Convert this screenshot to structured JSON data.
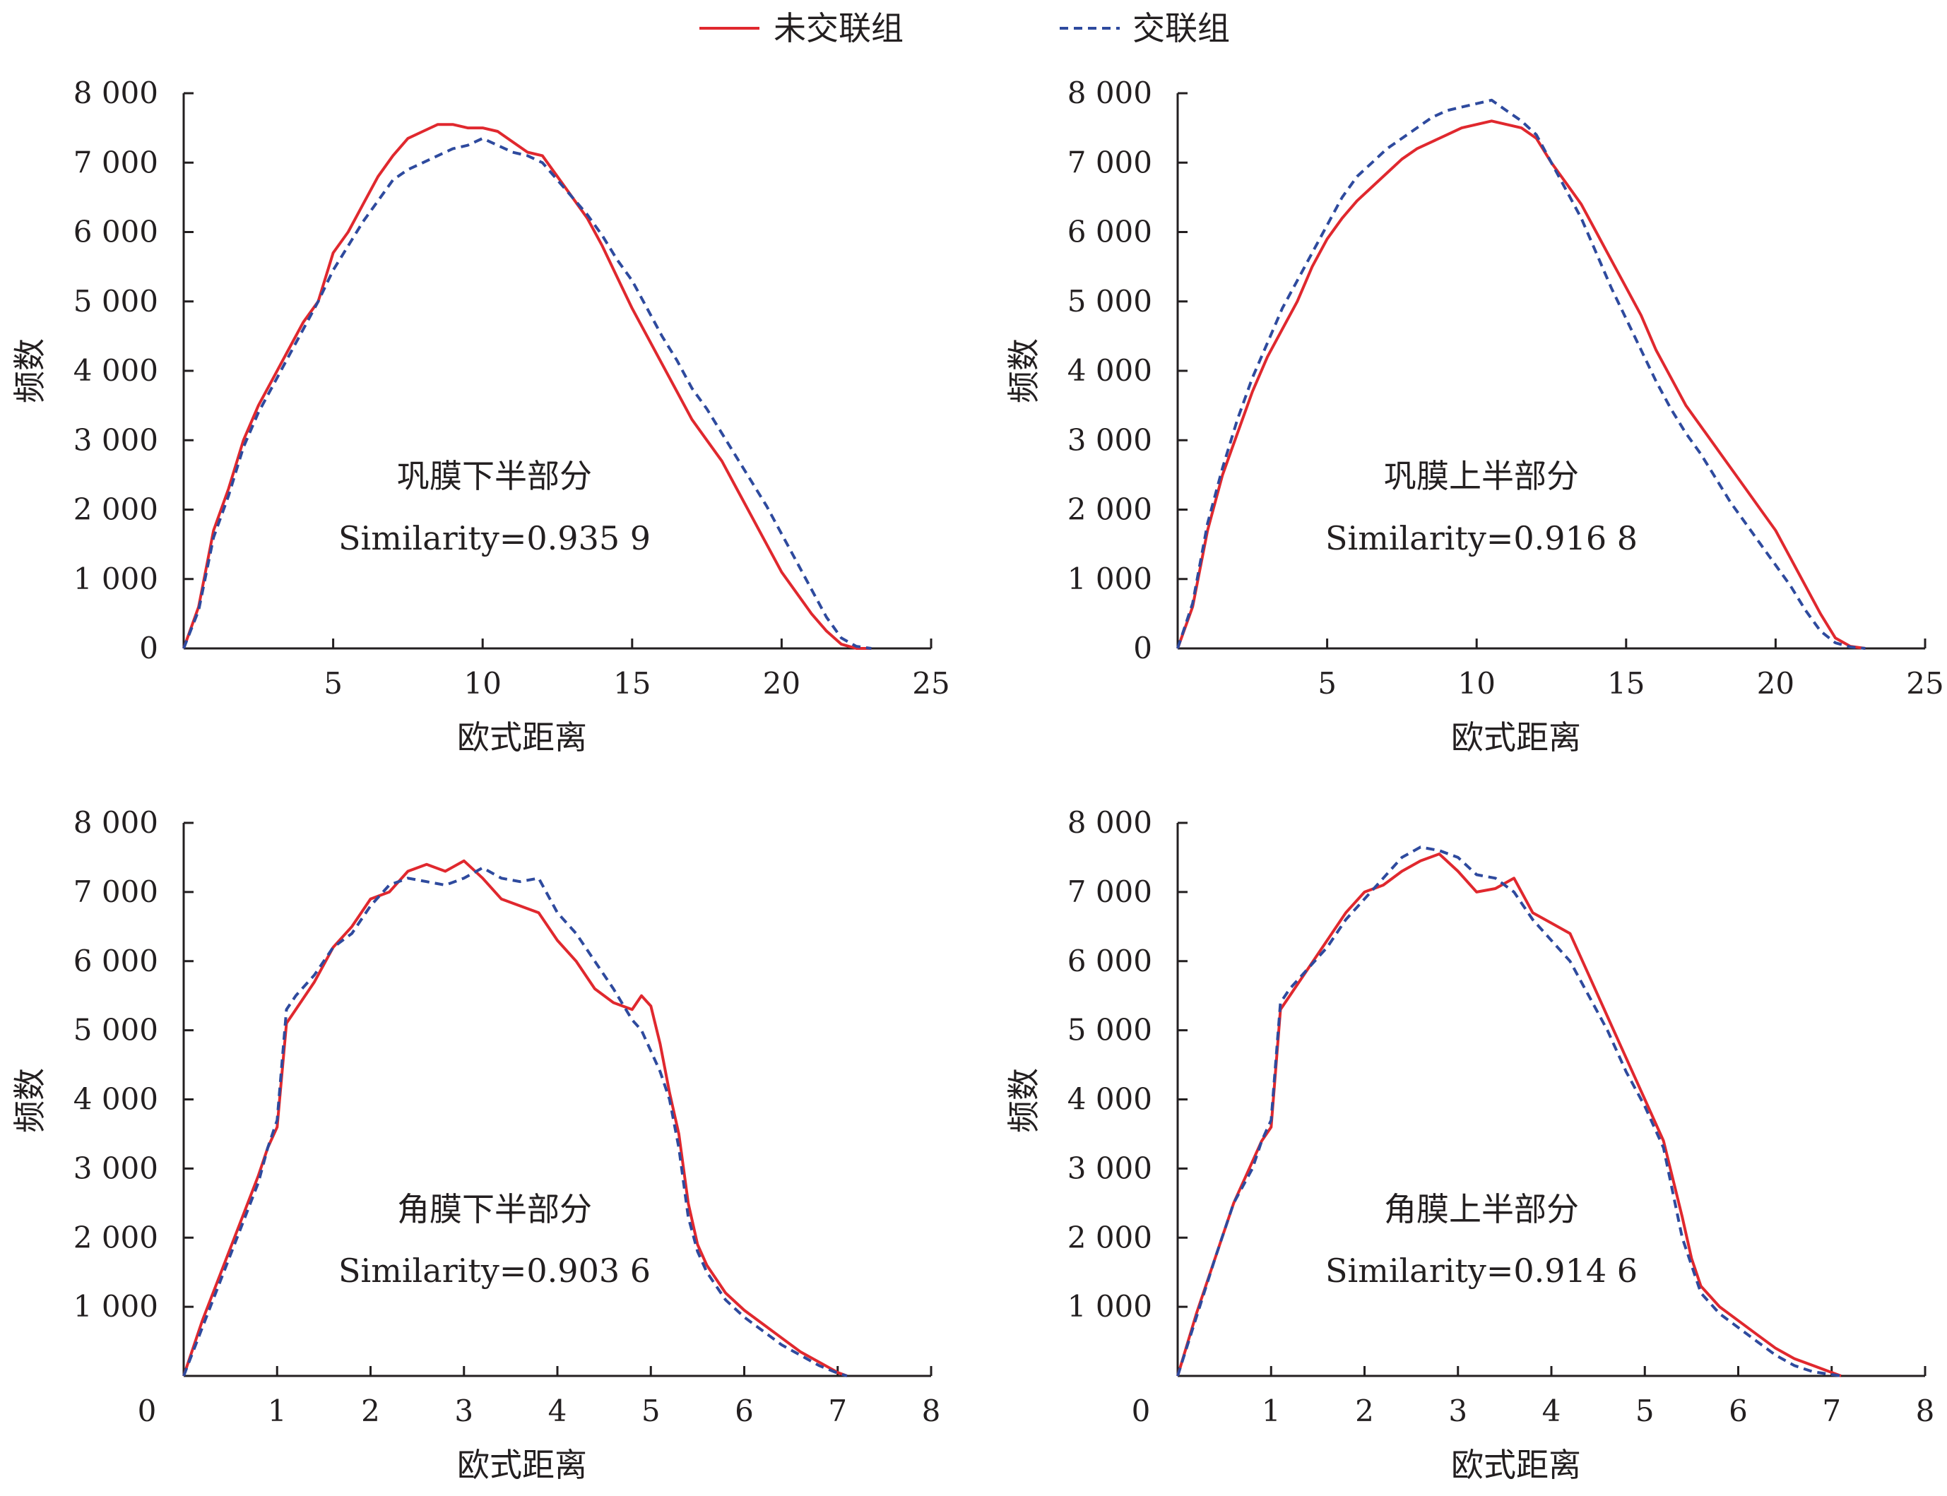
{
  "legend": {
    "position": "top-center",
    "items": [
      {
        "label": "未交联组",
        "color": "#e0282e",
        "dash": "solid"
      },
      {
        "label": "交联组",
        "color": "#2e4a9e",
        "dash": "dashed"
      }
    ]
  },
  "chart_data": [
    {
      "type": "line",
      "id": "tl",
      "xlabel": "欧式距离",
      "ylabel": "频数",
      "annotation_title": "巩膜下半部分",
      "annotation_similarity": "Similarity=0.935 9",
      "xlim": [
        0,
        25
      ],
      "ylim": [
        0,
        8000
      ],
      "xticks": [
        5,
        10,
        15,
        20,
        25
      ],
      "xtick_labels": [
        "5",
        "10",
        "15",
        "20",
        "25"
      ],
      "yticks": [
        0,
        1000,
        2000,
        3000,
        4000,
        5000,
        6000,
        7000,
        8000
      ],
      "ytick_labels": [
        "0",
        "1 000",
        "2 000",
        "3 000",
        "4 000",
        "5 000",
        "6 000",
        "7 000",
        "8 000"
      ],
      "grid": false,
      "series": [
        {
          "name": "未交联组",
          "color": "#e0282e",
          "dash": "solid",
          "x": [
            0,
            0.5,
            1,
            1.5,
            2,
            2.5,
            3,
            3.5,
            4,
            4.5,
            5,
            5.5,
            6,
            6.5,
            7,
            7.5,
            8,
            8.5,
            9,
            9.5,
            10,
            10.5,
            11,
            11.5,
            12,
            12.5,
            13,
            13.5,
            14,
            14.5,
            15,
            15.5,
            16,
            16.5,
            17,
            17.5,
            18,
            18.5,
            19,
            19.5,
            20,
            20.5,
            21,
            21.5,
            22,
            22.5,
            23
          ],
          "y": [
            0,
            600,
            1700,
            2300,
            3000,
            3500,
            3900,
            4300,
            4700,
            5000,
            5700,
            6000,
            6400,
            6800,
            7100,
            7350,
            7450,
            7550,
            7550,
            7500,
            7500,
            7450,
            7300,
            7150,
            7100,
            6800,
            6500,
            6200,
            5800,
            5350,
            4900,
            4500,
            4100,
            3700,
            3300,
            3000,
            2700,
            2300,
            1900,
            1500,
            1100,
            800,
            500,
            250,
            60,
            0,
            0
          ]
        },
        {
          "name": "交联组",
          "color": "#2e4a9e",
          "dash": "dashed",
          "x": [
            0,
            0.5,
            1,
            1.5,
            2,
            2.5,
            3,
            3.5,
            4,
            4.5,
            5,
            5.5,
            6,
            6.5,
            7,
            7.5,
            8,
            8.5,
            9,
            9.5,
            10,
            10.5,
            11,
            11.5,
            12,
            12.5,
            13,
            13.5,
            14,
            14.5,
            15,
            15.5,
            16,
            16.5,
            17,
            17.5,
            18,
            18.5,
            19,
            19.5,
            20,
            20.5,
            21,
            21.5,
            22,
            22.5,
            23
          ],
          "y": [
            0,
            550,
            1600,
            2200,
            2900,
            3400,
            3800,
            4200,
            4600,
            5000,
            5450,
            5800,
            6150,
            6450,
            6750,
            6900,
            7000,
            7100,
            7200,
            7250,
            7350,
            7250,
            7150,
            7100,
            7000,
            6750,
            6500,
            6250,
            5950,
            5600,
            5300,
            4900,
            4500,
            4150,
            3750,
            3450,
            3100,
            2750,
            2400,
            2050,
            1650,
            1250,
            850,
            450,
            150,
            30,
            0
          ]
        }
      ]
    },
    {
      "type": "line",
      "id": "tr",
      "xlabel": "欧式距离",
      "ylabel": "频数",
      "annotation_title": "巩膜上半部分",
      "annotation_similarity": "Similarity=0.916 8",
      "xlim": [
        0,
        25
      ],
      "ylim": [
        0,
        8000
      ],
      "xticks": [
        5,
        10,
        15,
        20,
        25
      ],
      "xtick_labels": [
        "5",
        "10",
        "15",
        "20",
        "25"
      ],
      "yticks": [
        0,
        1000,
        2000,
        3000,
        4000,
        5000,
        6000,
        7000,
        8000
      ],
      "ytick_labels": [
        "0",
        "1 000",
        "2 000",
        "3 000",
        "4 000",
        "5 000",
        "6 000",
        "7 000",
        "8 000"
      ],
      "grid": false,
      "series": [
        {
          "name": "未交联组",
          "color": "#e0282e",
          "dash": "solid",
          "x": [
            0,
            0.5,
            1,
            1.5,
            2,
            2.5,
            3,
            3.5,
            4,
            4.5,
            5,
            5.5,
            6,
            6.5,
            7,
            7.5,
            8,
            8.5,
            9,
            9.5,
            10,
            10.5,
            11,
            11.5,
            12,
            12.5,
            13,
            13.5,
            14,
            14.5,
            15,
            15.5,
            16,
            16.5,
            17,
            17.5,
            18,
            18.5,
            19,
            19.5,
            20,
            20.5,
            21,
            21.5,
            22,
            22.5,
            23
          ],
          "y": [
            0,
            600,
            1700,
            2500,
            3100,
            3700,
            4200,
            4600,
            5000,
            5500,
            5900,
            6200,
            6450,
            6650,
            6850,
            7050,
            7200,
            7300,
            7400,
            7500,
            7550,
            7600,
            7550,
            7500,
            7350,
            7000,
            6700,
            6400,
            6000,
            5600,
            5200,
            4800,
            4300,
            3900,
            3500,
            3200,
            2900,
            2600,
            2300,
            2000,
            1700,
            1300,
            900,
            500,
            150,
            30,
            0
          ]
        },
        {
          "name": "交联组",
          "color": "#2e4a9e",
          "dash": "dashed",
          "x": [
            0,
            0.5,
            1,
            1.5,
            2,
            2.5,
            3,
            3.5,
            4,
            4.5,
            5,
            5.5,
            6,
            6.5,
            7,
            7.5,
            8,
            8.5,
            9,
            9.5,
            10,
            10.5,
            11,
            11.5,
            12,
            12.5,
            13,
            13.5,
            14,
            14.5,
            15,
            15.5,
            16,
            16.5,
            17,
            17.5,
            18,
            18.5,
            19,
            19.5,
            20,
            20.5,
            21,
            21.5,
            22,
            22.5,
            23
          ],
          "y": [
            0,
            650,
            1800,
            2600,
            3300,
            3900,
            4400,
            4900,
            5300,
            5700,
            6100,
            6500,
            6800,
            7000,
            7200,
            7350,
            7500,
            7650,
            7750,
            7800,
            7850,
            7900,
            7750,
            7600,
            7400,
            7000,
            6600,
            6200,
            5700,
            5200,
            4750,
            4300,
            3850,
            3450,
            3100,
            2800,
            2450,
            2100,
            1800,
            1500,
            1200,
            900,
            550,
            250,
            80,
            20,
            0
          ]
        }
      ]
    },
    {
      "type": "line",
      "id": "bl",
      "xlabel": "欧式距离",
      "ylabel": "频数",
      "annotation_title": "角膜下半部分",
      "annotation_similarity": "Similarity=0.903 6",
      "xlim": [
        0,
        8
      ],
      "ylim": [
        0,
        8000
      ],
      "xticks": [
        0,
        1,
        2,
        3,
        4,
        5,
        6,
        7,
        8
      ],
      "xtick_labels": [
        "0",
        "1",
        "2",
        "3",
        "4",
        "5",
        "6",
        "7",
        "8"
      ],
      "yticks": [
        1000,
        2000,
        3000,
        4000,
        5000,
        6000,
        7000,
        8000
      ],
      "ytick_labels": [
        "1 000",
        "2 000",
        "3 000",
        "4 000",
        "5 000",
        "6 000",
        "7 000",
        "8 000"
      ],
      "grid": false,
      "series": [
        {
          "name": "未交联组",
          "color": "#e0282e",
          "dash": "solid",
          "x": [
            0,
            0.2,
            0.4,
            0.6,
            0.8,
            0.9,
            1.0,
            1.1,
            1.2,
            1.4,
            1.6,
            1.8,
            2.0,
            2.2,
            2.4,
            2.6,
            2.8,
            3.0,
            3.2,
            3.4,
            3.6,
            3.8,
            4.0,
            4.2,
            4.4,
            4.6,
            4.8,
            4.9,
            5.0,
            5.1,
            5.2,
            5.3,
            5.4,
            5.5,
            5.6,
            5.8,
            6.0,
            6.2,
            6.4,
            6.6,
            6.8,
            7.0,
            7.1
          ],
          "y": [
            0,
            800,
            1500,
            2200,
            2900,
            3300,
            3600,
            5100,
            5300,
            5700,
            6200,
            6500,
            6900,
            7000,
            7300,
            7400,
            7300,
            7450,
            7200,
            6900,
            6800,
            6700,
            6300,
            6000,
            5600,
            5400,
            5300,
            5500,
            5350,
            4800,
            4100,
            3500,
            2500,
            1900,
            1600,
            1200,
            950,
            750,
            550,
            350,
            200,
            50,
            0
          ]
        },
        {
          "name": "交联组",
          "color": "#2e4a9e",
          "dash": "dashed",
          "x": [
            0,
            0.2,
            0.4,
            0.6,
            0.8,
            0.9,
            1.0,
            1.1,
            1.2,
            1.4,
            1.6,
            1.8,
            2.0,
            2.2,
            2.4,
            2.6,
            2.8,
            3.0,
            3.2,
            3.4,
            3.6,
            3.8,
            4.0,
            4.2,
            4.4,
            4.6,
            4.8,
            4.9,
            5.0,
            5.1,
            5.2,
            5.3,
            5.4,
            5.5,
            5.6,
            5.8,
            6.0,
            6.2,
            6.4,
            6.6,
            6.8,
            7.0,
            7.1
          ],
          "y": [
            0,
            700,
            1400,
            2100,
            2800,
            3300,
            3700,
            5300,
            5500,
            5800,
            6200,
            6400,
            6800,
            7100,
            7200,
            7150,
            7100,
            7200,
            7350,
            7200,
            7150,
            7200,
            6700,
            6400,
            6000,
            5600,
            5150,
            5000,
            4700,
            4400,
            4000,
            3300,
            2300,
            1800,
            1500,
            1100,
            850,
            650,
            450,
            300,
            150,
            40,
            0
          ]
        }
      ]
    },
    {
      "type": "line",
      "id": "br",
      "xlabel": "欧式距离",
      "ylabel": "频数",
      "annotation_title": "角膜上半部分",
      "annotation_similarity": "Similarity=0.914 6",
      "xlim": [
        0,
        8
      ],
      "ylim": [
        0,
        8000
      ],
      "xticks": [
        0,
        1,
        2,
        3,
        4,
        5,
        6,
        7,
        8
      ],
      "xtick_labels": [
        "0",
        "1",
        "2",
        "3",
        "4",
        "5",
        "6",
        "7",
        "8"
      ],
      "yticks": [
        1000,
        2000,
        3000,
        4000,
        5000,
        6000,
        7000,
        8000
      ],
      "ytick_labels": [
        "1 000",
        "2 000",
        "3 000",
        "4 000",
        "5 000",
        "6 000",
        "7 000",
        "8 000"
      ],
      "grid": false,
      "series": [
        {
          "name": "未交联组",
          "color": "#e0282e",
          "dash": "solid",
          "x": [
            0,
            0.2,
            0.4,
            0.6,
            0.8,
            0.9,
            1.0,
            1.1,
            1.2,
            1.4,
            1.6,
            1.8,
            2.0,
            2.2,
            2.4,
            2.6,
            2.8,
            3.0,
            3.2,
            3.4,
            3.6,
            3.8,
            4.0,
            4.2,
            4.4,
            4.6,
            4.8,
            5.0,
            5.2,
            5.4,
            5.5,
            5.6,
            5.8,
            6.0,
            6.2,
            6.4,
            6.6,
            6.8,
            7.0,
            7.1
          ],
          "y": [
            0,
            900,
            1700,
            2500,
            3100,
            3400,
            3600,
            5300,
            5500,
            5900,
            6300,
            6700,
            7000,
            7100,
            7300,
            7450,
            7550,
            7300,
            7000,
            7050,
            7200,
            6700,
            6550,
            6400,
            5800,
            5200,
            4600,
            4000,
            3400,
            2300,
            1700,
            1300,
            1000,
            800,
            600,
            400,
            250,
            150,
            50,
            0
          ]
        },
        {
          "name": "交联组",
          "color": "#2e4a9e",
          "dash": "dashed",
          "x": [
            0,
            0.2,
            0.4,
            0.6,
            0.8,
            0.9,
            1.0,
            1.1,
            1.2,
            1.4,
            1.6,
            1.8,
            2.0,
            2.2,
            2.4,
            2.6,
            2.8,
            3.0,
            3.2,
            3.4,
            3.6,
            3.8,
            4.0,
            4.2,
            4.4,
            4.6,
            4.8,
            5.0,
            5.2,
            5.4,
            5.5,
            5.6,
            5.8,
            6.0,
            6.2,
            6.4,
            6.6,
            6.8,
            7.0,
            7.1
          ],
          "y": [
            0,
            850,
            1700,
            2500,
            3000,
            3400,
            3700,
            5400,
            5600,
            5900,
            6200,
            6600,
            6900,
            7200,
            7500,
            7650,
            7600,
            7500,
            7250,
            7200,
            7000,
            6600,
            6300,
            6000,
            5500,
            5000,
            4400,
            3900,
            3300,
            2000,
            1600,
            1200,
            900,
            700,
            500,
            300,
            150,
            60,
            20,
            0
          ]
        }
      ]
    }
  ]
}
